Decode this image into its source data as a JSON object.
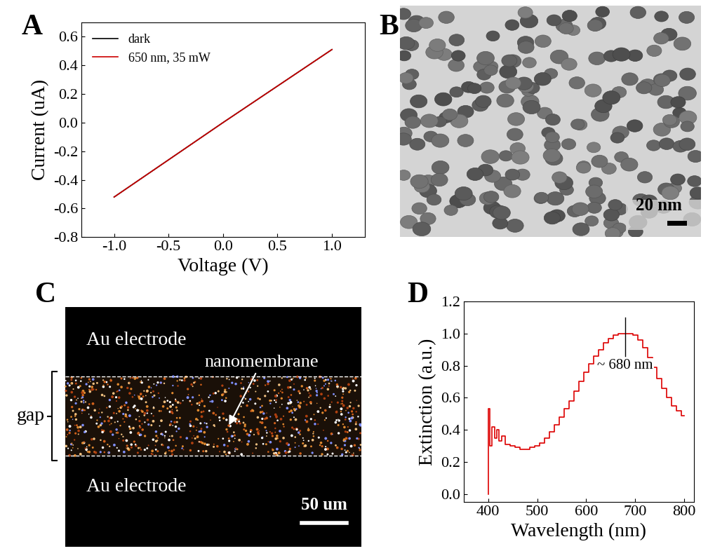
{
  "panel_labels": [
    "A",
    "B",
    "C",
    "D"
  ],
  "chart_data": [
    {
      "type": "line",
      "xlabel": "Voltage (V)",
      "ylabel": "Current (uA)",
      "x": [
        -1.0,
        -0.5,
        0.0,
        0.5,
        1.0
      ],
      "series": [
        {
          "name": "dark",
          "color": "#000000",
          "values": [
            -0.52,
            -0.26,
            0.0,
            0.255,
            0.51
          ]
        },
        {
          "name": "650 nm, 35 mW",
          "color": "#cc0000",
          "values": [
            -0.52,
            -0.26,
            0.0,
            0.255,
            0.51
          ]
        }
      ],
      "xlim": [
        -1.3,
        1.3
      ],
      "xticks": [
        -1.0,
        -0.5,
        0.0,
        0.5,
        1.0
      ],
      "ylim": [
        -0.8,
        0.7
      ],
      "yticks": [
        -0.8,
        -0.6,
        -0.4,
        -0.2,
        0.0,
        0.2,
        0.4,
        0.6
      ],
      "legend": "upper left",
      "grid": false
    },
    {
      "type": "line",
      "xlabel": "Wavelength (nm)",
      "ylabel": "Extinction (a.u.)",
      "x": [
        400,
        402,
        405,
        410,
        415,
        420,
        425,
        430,
        440,
        450,
        460,
        470,
        480,
        490,
        500,
        510,
        520,
        530,
        540,
        550,
        560,
        570,
        580,
        590,
        600,
        610,
        620,
        630,
        640,
        650,
        660,
        670,
        680,
        690,
        700,
        710,
        720,
        730,
        740,
        750,
        760,
        770,
        780,
        790,
        800
      ],
      "series": [
        {
          "color": "#dd0000",
          "values": [
            0.0,
            0.53,
            0.3,
            0.42,
            0.35,
            0.4,
            0.33,
            0.36,
            0.31,
            0.3,
            0.29,
            0.28,
            0.28,
            0.29,
            0.3,
            0.32,
            0.35,
            0.39,
            0.43,
            0.48,
            0.53,
            0.58,
            0.64,
            0.7,
            0.76,
            0.81,
            0.86,
            0.9,
            0.94,
            0.97,
            0.99,
            1.0,
            1.0,
            1.0,
            0.99,
            0.96,
            0.91,
            0.85,
            0.79,
            0.72,
            0.66,
            0.6,
            0.55,
            0.52,
            0.49
          ]
        }
      ],
      "annotations": [
        {
          "text": "~ 680 nm",
          "x": 680
        }
      ],
      "xlim": [
        350,
        820
      ],
      "xticks": [
        400,
        500,
        600,
        700,
        800
      ],
      "ylim": [
        -0.05,
        1.2
      ],
      "yticks": [
        0.0,
        0.2,
        0.4,
        0.6,
        0.8,
        1.0,
        1.2
      ],
      "grid": false
    }
  ],
  "tem_image": {
    "scale_bar": "20 nm"
  },
  "micrograph": {
    "electrode_top": "Au electrode",
    "electrode_bottom": "Au electrode",
    "arrow_label": "nanomembrane",
    "gap_label": "gap",
    "scale_bar": "50 um"
  }
}
